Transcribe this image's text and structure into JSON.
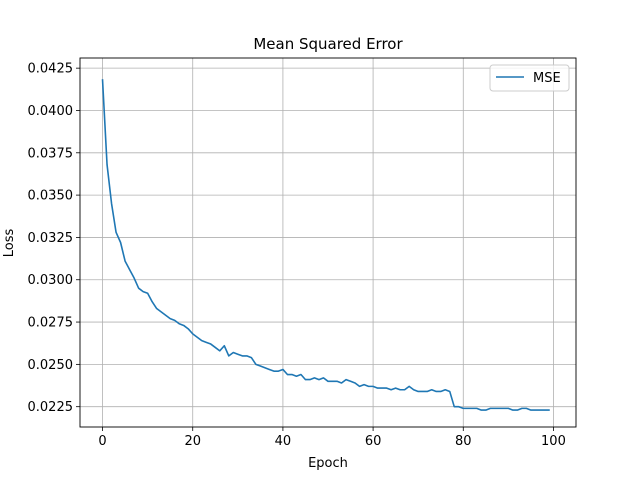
{
  "chart_data": {
    "type": "line",
    "title": "Mean Squared Error",
    "xlabel": "Epoch",
    "ylabel": "Loss",
    "xlim": [
      -5,
      105
    ],
    "ylim": [
      0.0213,
      0.0431
    ],
    "grid": true,
    "legend_position": "top-right",
    "x_ticks": [
      0,
      20,
      40,
      60,
      80,
      100
    ],
    "x_tick_labels": [
      "0",
      "20",
      "40",
      "60",
      "80",
      "100"
    ],
    "y_ticks": [
      0.0225,
      0.025,
      0.0275,
      0.03,
      0.0325,
      0.035,
      0.0375,
      0.04,
      0.0425
    ],
    "y_tick_labels": [
      "0.0225",
      "0.0250",
      "0.0275",
      "0.0300",
      "0.0325",
      "0.0350",
      "0.0375",
      "0.0400",
      "0.0425"
    ],
    "series": [
      {
        "name": "MSE",
        "color": "#1f77b4",
        "x": [
          0,
          1,
          2,
          3,
          4,
          5,
          6,
          7,
          8,
          9,
          10,
          11,
          12,
          13,
          14,
          15,
          16,
          17,
          18,
          19,
          20,
          21,
          22,
          23,
          24,
          25,
          26,
          27,
          28,
          29,
          30,
          31,
          32,
          33,
          34,
          35,
          36,
          37,
          38,
          39,
          40,
          41,
          42,
          43,
          44,
          45,
          46,
          47,
          48,
          49,
          50,
          51,
          52,
          53,
          54,
          55,
          56,
          57,
          58,
          59,
          60,
          61,
          62,
          63,
          64,
          65,
          66,
          67,
          68,
          69,
          70,
          71,
          72,
          73,
          74,
          75,
          76,
          77,
          78,
          79,
          80,
          81,
          82,
          83,
          84,
          85,
          86,
          87,
          88,
          89,
          90,
          91,
          92,
          93,
          94,
          95,
          96,
          97,
          98,
          99
        ],
        "values": [
          0.0418,
          0.0368,
          0.0345,
          0.0328,
          0.0322,
          0.0311,
          0.0306,
          0.0301,
          0.0295,
          0.0293,
          0.0292,
          0.0287,
          0.0283,
          0.0281,
          0.0279,
          0.0277,
          0.0276,
          0.0274,
          0.0273,
          0.0271,
          0.0268,
          0.0266,
          0.0264,
          0.0263,
          0.0262,
          0.026,
          0.0258,
          0.0261,
          0.0255,
          0.0257,
          0.0256,
          0.0255,
          0.0255,
          0.0254,
          0.025,
          0.0249,
          0.0248,
          0.0247,
          0.0246,
          0.0246,
          0.0247,
          0.0244,
          0.0244,
          0.0243,
          0.0244,
          0.0241,
          0.0241,
          0.0242,
          0.0241,
          0.0242,
          0.024,
          0.024,
          0.024,
          0.0239,
          0.0241,
          0.024,
          0.0239,
          0.0237,
          0.0238,
          0.0237,
          0.0237,
          0.0236,
          0.0236,
          0.0236,
          0.0235,
          0.0236,
          0.0235,
          0.0235,
          0.0237,
          0.0235,
          0.0234,
          0.0234,
          0.0234,
          0.0235,
          0.0234,
          0.0234,
          0.0235,
          0.0234,
          0.0225,
          0.0225,
          0.0224,
          0.0224,
          0.0224,
          0.0224,
          0.0223,
          0.0223,
          0.0224,
          0.0224,
          0.0224,
          0.0224,
          0.0224,
          0.0223,
          0.0223,
          0.0224,
          0.0224,
          0.0223,
          0.0223,
          0.0223,
          0.0223,
          0.0223
        ]
      }
    ]
  }
}
